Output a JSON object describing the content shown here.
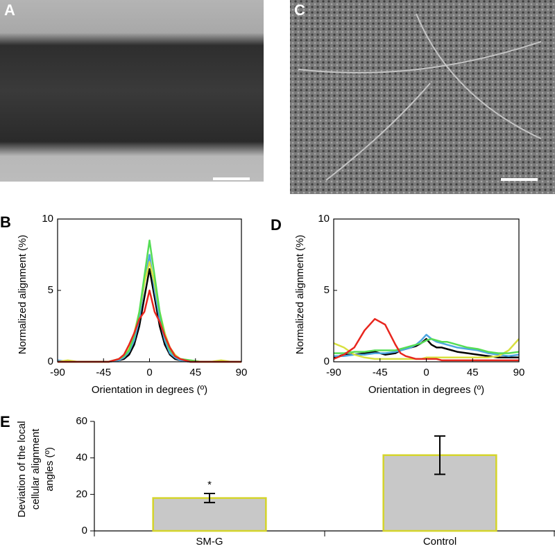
{
  "chart_data": [
    {
      "type": "image",
      "panel": "A"
    },
    {
      "type": "image",
      "panel": "C"
    },
    {
      "type": "line",
      "panel": "B",
      "ylabel": "Normalized alignment (%)",
      "xlabel": "Orientation in degrees (º)",
      "x": [
        -90,
        -80,
        -70,
        -60,
        -50,
        -40,
        -30,
        -25,
        -20,
        -15,
        -10,
        -5,
        0,
        5,
        10,
        15,
        20,
        25,
        30,
        40,
        50,
        60,
        70,
        80,
        90
      ],
      "xlim": [
        -90,
        90
      ],
      "xticks": [
        -90,
        -45,
        0,
        45,
        90
      ],
      "ylim": [
        0,
        10
      ],
      "yticks": [
        0,
        5,
        10
      ],
      "series": [
        {
          "color": "#000000",
          "values": [
            0,
            0,
            0,
            0,
            0,
            0,
            0.1,
            0.2,
            0.5,
            1.2,
            2.5,
            4.5,
            6.5,
            4.5,
            2.5,
            1.2,
            0.5,
            0.2,
            0.1,
            0,
            0,
            0,
            0,
            0,
            0
          ]
        },
        {
          "color": "#4da6e0",
          "values": [
            0.1,
            0,
            0,
            0,
            0,
            0,
            0.1,
            0.3,
            0.7,
            1.5,
            3,
            5.5,
            7.5,
            5,
            3,
            1.5,
            0.6,
            0.3,
            0.1,
            0,
            0,
            0,
            0,
            0,
            0
          ]
        },
        {
          "color": "#d8e040",
          "values": [
            0,
            0.1,
            0,
            0,
            0,
            0,
            0.2,
            0.4,
            0.9,
            2,
            3.5,
            5.5,
            7,
            5.5,
            3.5,
            2,
            1,
            0.5,
            0.2,
            0.1,
            0,
            0,
            0.1,
            0,
            0
          ]
        },
        {
          "color": "#55dd55",
          "values": [
            0,
            0,
            0,
            0,
            0,
            0,
            0.2,
            0.4,
            0.8,
            1.8,
            3.5,
            6,
            8.5,
            6,
            3.5,
            1.8,
            0.8,
            0.4,
            0.2,
            0.1,
            0,
            0,
            0,
            0,
            0
          ]
        },
        {
          "color": "#e8261e",
          "values": [
            0,
            0,
            0,
            0,
            0,
            0,
            0.2,
            0.5,
            1.2,
            2,
            3,
            3.5,
            5,
            3.5,
            2.8,
            1.8,
            1,
            0.4,
            0.2,
            0,
            0,
            0,
            0,
            0,
            0
          ]
        }
      ]
    },
    {
      "type": "line",
      "panel": "D",
      "ylabel": "Normalized alignment (%)",
      "xlabel": "Orientation in degrees (º)",
      "x": [
        -90,
        -80,
        -70,
        -60,
        -50,
        -40,
        -30,
        -25,
        -20,
        -15,
        -10,
        -5,
        0,
        5,
        10,
        15,
        20,
        25,
        30,
        40,
        50,
        60,
        70,
        80,
        90
      ],
      "xlim": [
        -90,
        90
      ],
      "xticks": [
        -90,
        -45,
        0,
        45,
        90
      ],
      "ylim": [
        0,
        10
      ],
      "yticks": [
        0,
        5,
        10
      ],
      "series": [
        {
          "color": "#000000",
          "values": [
            0.3,
            0.5,
            0.5,
            0.6,
            0.7,
            0.5,
            0.6,
            0.8,
            0.9,
            1,
            1.1,
            1.3,
            1.6,
            1.2,
            1,
            1,
            0.9,
            0.8,
            0.7,
            0.6,
            0.5,
            0.4,
            0.3,
            0.3,
            0.3
          ]
        },
        {
          "color": "#4da6e0",
          "values": [
            0.4,
            0.4,
            0.5,
            0.5,
            0.6,
            0.6,
            0.7,
            0.8,
            0.9,
            1,
            1.2,
            1.5,
            1.9,
            1.6,
            1.4,
            1.3,
            1.2,
            1.1,
            1,
            0.9,
            0.8,
            0.6,
            0.5,
            0.4,
            0.5
          ]
        },
        {
          "color": "#d8e040",
          "values": [
            1.3,
            1,
            0.5,
            0.3,
            0.2,
            0.2,
            0.2,
            0.2,
            0.2,
            0.2,
            0.2,
            0.2,
            0.3,
            0.3,
            0.3,
            0.3,
            0.3,
            0.3,
            0.3,
            0.3,
            0.3,
            0.3,
            0.4,
            0.8,
            1.6
          ]
        },
        {
          "color": "#55dd55",
          "values": [
            0.6,
            0.6,
            0.7,
            0.7,
            0.8,
            0.8,
            0.8,
            0.9,
            1,
            1.1,
            1.2,
            1.3,
            1.5,
            1.6,
            1.5,
            1.4,
            1.4,
            1.3,
            1.2,
            1,
            0.9,
            0.7,
            0.6,
            0.6,
            0.7
          ]
        },
        {
          "color": "#e8261e",
          "values": [
            0.2,
            0.5,
            1,
            2.2,
            3,
            2.6,
            1.2,
            0.6,
            0.4,
            0.3,
            0.2,
            0.2,
            0.2,
            0.2,
            0.2,
            0.1,
            0.1,
            0.1,
            0.1,
            0.1,
            0.1,
            0.1,
            0.1,
            0.1,
            0.1
          ]
        }
      ]
    },
    {
      "type": "bar",
      "panel": "E",
      "ylabel": [
        "Deviation of the local",
        "cellular alignment",
        "angles (º)"
      ],
      "categories": [
        "SM-G",
        "Control"
      ],
      "values": [
        18,
        41.5
      ],
      "errors": [
        2.5,
        10.5
      ],
      "color": "#c8c8c8",
      "edgecolor": "#d4d42a",
      "ylim": [
        0,
        60
      ],
      "yticks": [
        0,
        20,
        40,
        60
      ],
      "annotations": [
        {
          "text": "*",
          "x": "SM-G"
        }
      ]
    }
  ]
}
